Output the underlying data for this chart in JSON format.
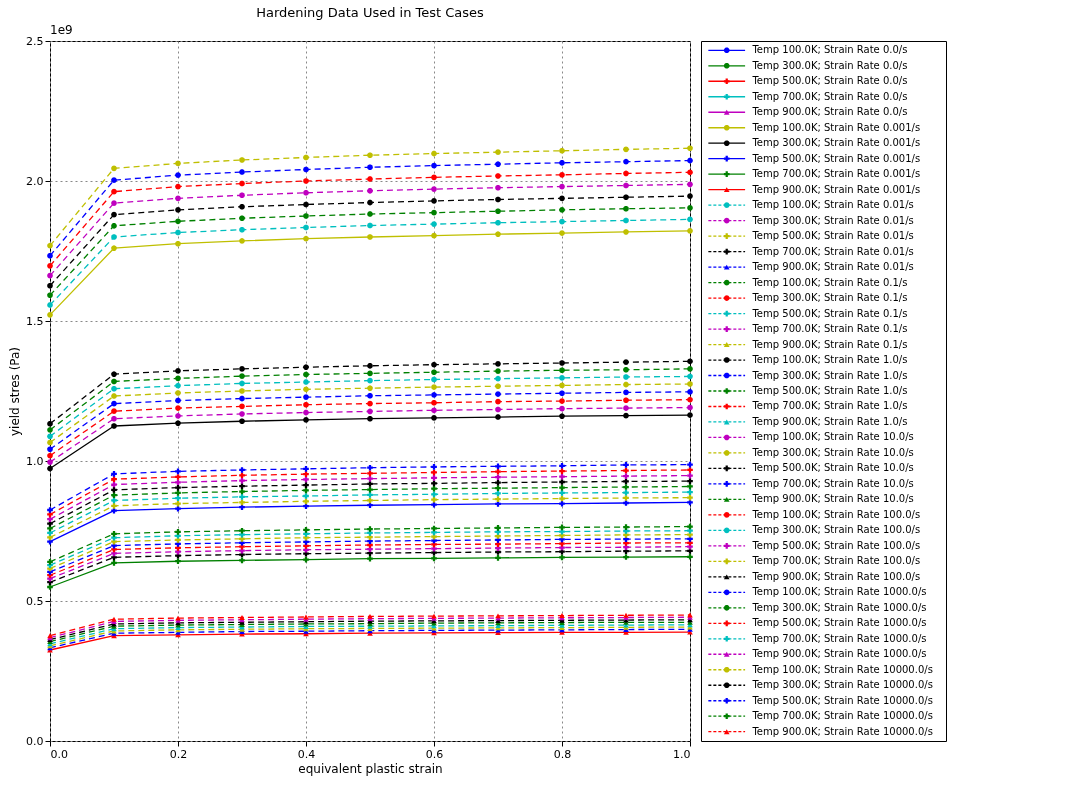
{
  "chart_data": {
    "type": "line",
    "title": "Hardening Data Used in Test Cases",
    "xlabel": "equivalent plastic strain",
    "ylabel": "yield stres (Pa)",
    "annotations": [
      "1e9"
    ],
    "x": [
      0,
      0.1,
      0.2,
      0.3,
      0.4,
      0.5,
      0.6,
      0.7,
      0.8,
      0.9,
      1.0
    ],
    "xlim": [
      0,
      1
    ],
    "xticks": [
      {
        "value": 0,
        "label": "0.0"
      },
      0.2,
      0.4,
      0.6,
      0.8,
      {
        "value": 1,
        "label": "1.0"
      }
    ],
    "ylim": [
      0,
      2.5
    ],
    "yticks": [
      {
        "value": 0,
        "label": "0.0"
      },
      0.5,
      {
        "value": 1,
        "label": "1.0"
      },
      1.5,
      {
        "value": 2,
        "label": "2.0"
      },
      2.5
    ],
    "grid": true,
    "legend": "right",
    "series": [
      {
        "name": "Temp 100.0K; Strain Rate 0.0/s",
        "color": "#0000ff",
        "marker": "circle",
        "line_style": "solid",
        "values": [
          null,
          null,
          null,
          null,
          null,
          null,
          null,
          null,
          null,
          null,
          null
        ]
      },
      {
        "name": "Temp 300.0K; Strain Rate 0.0/s",
        "color": "#008000",
        "marker": "circle",
        "line_style": "solid",
        "values": [
          null,
          null,
          null,
          null,
          null,
          null,
          null,
          null,
          null,
          null,
          null
        ]
      },
      {
        "name": "Temp 500.0K; Strain Rate 0.0/s",
        "color": "#ff0000",
        "marker": "cross",
        "line_style": "solid",
        "values": [
          null,
          null,
          null,
          null,
          null,
          null,
          null,
          null,
          null,
          null,
          null
        ]
      },
      {
        "name": "Temp 700.0K; Strain Rate 0.0/s",
        "color": "#00bfbf",
        "marker": "cross",
        "line_style": "solid",
        "values": [
          null,
          null,
          null,
          null,
          null,
          null,
          null,
          null,
          null,
          null,
          null
        ]
      },
      {
        "name": "Temp 900.0K; Strain Rate 0.0/s",
        "color": "#bf00bf",
        "marker": "triangle",
        "line_style": "solid",
        "values": [
          null,
          null,
          null,
          null,
          null,
          null,
          null,
          null,
          null,
          null,
          null
        ]
      },
      {
        "name": "Temp 100.0K; Strain Rate 0.001/s",
        "color": "#bfbf00",
        "marker": "circle",
        "line_style": "solid",
        "values": [
          1.522,
          1.76,
          1.776,
          1.786,
          1.794,
          1.8,
          1.805,
          1.81,
          1.814,
          1.818,
          1.822
        ]
      },
      {
        "name": "Temp 300.0K; Strain Rate 0.001/s",
        "color": "#000000",
        "marker": "circle",
        "line_style": "solid",
        "values": [
          0.973,
          1.125,
          1.135,
          1.142,
          1.147,
          1.151,
          1.154,
          1.157,
          1.16,
          1.162,
          1.164
        ]
      },
      {
        "name": "Temp 500.0K; Strain Rate 0.001/s",
        "color": "#0000ff",
        "marker": "cross",
        "line_style": "solid",
        "values": [
          0.712,
          0.823,
          0.83,
          0.835,
          0.839,
          0.842,
          0.844,
          0.847,
          0.848,
          0.85,
          0.852
        ]
      },
      {
        "name": "Temp 700.0K; Strain Rate 0.001/s",
        "color": "#008000",
        "marker": "cross",
        "line_style": "solid",
        "values": [
          0.55,
          0.636,
          0.642,
          0.645,
          0.648,
          0.651,
          0.652,
          0.654,
          0.656,
          0.657,
          0.658
        ]
      },
      {
        "name": "Temp 900.0K; Strain Rate 0.001/s",
        "color": "#ff0000",
        "marker": "triangle",
        "line_style": "solid",
        "values": [
          0.325,
          0.376,
          0.379,
          0.382,
          0.383,
          0.385,
          0.386,
          0.387,
          0.388,
          0.388,
          0.389
        ]
      },
      {
        "name": "Temp 100.0K; Strain Rate 0.01/s",
        "color": "#00bfbf",
        "marker": "circle",
        "line_style": "dashed",
        "values": [
          1.557,
          1.8,
          1.816,
          1.826,
          1.834,
          1.841,
          1.846,
          1.851,
          1.855,
          1.859,
          1.863
        ]
      },
      {
        "name": "Temp 300.0K; Strain Rate 0.01/s",
        "color": "#bf00bf",
        "marker": "circle",
        "line_style": "dashed",
        "values": [
          0.996,
          1.151,
          1.161,
          1.168,
          1.173,
          1.177,
          1.181,
          1.184,
          1.187,
          1.189,
          1.191
        ]
      },
      {
        "name": "Temp 500.0K; Strain Rate 0.01/s",
        "color": "#bfbf00",
        "marker": "cross",
        "line_style": "dashed",
        "values": [
          0.727,
          0.84,
          0.848,
          0.852,
          0.856,
          0.859,
          0.862,
          0.864,
          0.866,
          0.868,
          0.869
        ]
      },
      {
        "name": "Temp 700.0K; Strain Rate 0.01/s",
        "color": "#000000",
        "marker": "cross",
        "line_style": "dashed",
        "values": [
          0.567,
          0.656,
          0.662,
          0.666,
          0.669,
          0.671,
          0.673,
          0.675,
          0.676,
          0.678,
          0.679
        ]
      },
      {
        "name": "Temp 900.0K; Strain Rate 0.01/s",
        "color": "#0000ff",
        "marker": "triangle",
        "line_style": "dashed",
        "values": [
          0.333,
          0.385,
          0.388,
          0.391,
          0.392,
          0.394,
          0.395,
          0.396,
          0.397,
          0.398,
          0.399
        ]
      },
      {
        "name": "Temp 100.0K; Strain Rate 0.1/s",
        "color": "#008000",
        "marker": "circle",
        "line_style": "dashed",
        "values": [
          1.592,
          1.84,
          1.856,
          1.867,
          1.875,
          1.882,
          1.887,
          1.892,
          1.897,
          1.901,
          1.904
        ]
      },
      {
        "name": "Temp 300.0K; Strain Rate 0.1/s",
        "color": "#ff0000",
        "marker": "circle",
        "line_style": "dashed",
        "values": [
          1.019,
          1.178,
          1.189,
          1.195,
          1.201,
          1.205,
          1.208,
          1.212,
          1.214,
          1.217,
          1.219
        ]
      },
      {
        "name": "Temp 500.0K; Strain Rate 0.1/s",
        "color": "#00bfbf",
        "marker": "cross",
        "line_style": "dashed",
        "values": [
          0.743,
          0.859,
          0.867,
          0.872,
          0.875,
          0.879,
          0.881,
          0.884,
          0.886,
          0.887,
          0.889
        ]
      },
      {
        "name": "Temp 700.0K; Strain Rate 0.1/s",
        "color": "#bf00bf",
        "marker": "cross",
        "line_style": "dashed",
        "values": [
          0.58,
          0.67,
          0.676,
          0.68,
          0.683,
          0.685,
          0.687,
          0.689,
          0.691,
          0.692,
          0.694
        ]
      },
      {
        "name": "Temp 900.0K; Strain Rate 0.1/s",
        "color": "#bfbf00",
        "marker": "triangle",
        "line_style": "dashed",
        "values": [
          0.34,
          0.393,
          0.397,
          0.399,
          0.401,
          0.402,
          0.403,
          0.404,
          0.405,
          0.406,
          0.407
        ]
      },
      {
        "name": "Temp 100.0K; Strain Rate 1.0/s",
        "color": "#000000",
        "marker": "circle",
        "line_style": "dashed",
        "values": [
          1.626,
          1.88,
          1.897,
          1.908,
          1.916,
          1.923,
          1.929,
          1.934,
          1.938,
          1.942,
          1.946
        ]
      },
      {
        "name": "Temp 300.0K; Strain Rate 1.0/s",
        "color": "#0000ff",
        "marker": "circle",
        "line_style": "dashed",
        "values": [
          1.042,
          1.205,
          1.216,
          1.223,
          1.228,
          1.233,
          1.236,
          1.239,
          1.242,
          1.245,
          1.247
        ]
      },
      {
        "name": "Temp 500.0K; Strain Rate 1.0/s",
        "color": "#008000",
        "marker": "cross",
        "line_style": "dashed",
        "values": [
          0.759,
          0.878,
          0.886,
          0.891,
          0.895,
          0.898,
          0.901,
          0.903,
          0.905,
          0.907,
          0.909
        ]
      },
      {
        "name": "Temp 700.0K; Strain Rate 1.0/s",
        "color": "#ff0000",
        "marker": "cross",
        "line_style": "dashed",
        "values": [
          0.592,
          0.684,
          0.69,
          0.694,
          0.697,
          0.7,
          0.702,
          0.703,
          0.705,
          0.707,
          0.708
        ]
      },
      {
        "name": "Temp 900.0K; Strain Rate 1.0/s",
        "color": "#00bfbf",
        "marker": "triangle",
        "line_style": "dashed",
        "values": [
          0.347,
          0.401,
          0.405,
          0.407,
          0.409,
          0.41,
          0.411,
          0.412,
          0.413,
          0.414,
          0.415
        ]
      },
      {
        "name": "Temp 100.0K; Strain Rate 10.0/s",
        "color": "#bf00bf",
        "marker": "circle",
        "line_style": "dashed",
        "values": [
          1.662,
          1.921,
          1.938,
          1.949,
          1.958,
          1.965,
          1.971,
          1.976,
          1.98,
          1.984,
          1.988
        ]
      },
      {
        "name": "Temp 300.0K; Strain Rate 10.0/s",
        "color": "#bfbf00",
        "marker": "circle",
        "line_style": "dashed",
        "values": [
          1.066,
          1.232,
          1.243,
          1.25,
          1.256,
          1.26,
          1.264,
          1.267,
          1.27,
          1.273,
          1.275
        ]
      },
      {
        "name": "Temp 500.0K; Strain Rate 10.0/s",
        "color": "#000000",
        "marker": "cross",
        "line_style": "dashed",
        "values": [
          0.776,
          0.897,
          0.905,
          0.91,
          0.914,
          0.918,
          0.92,
          0.923,
          0.925,
          0.927,
          0.928
        ]
      },
      {
        "name": "Temp 700.0K; Strain Rate 10.0/s",
        "color": "#0000ff",
        "marker": "cross",
        "line_style": "dashed",
        "values": [
          0.604,
          0.698,
          0.704,
          0.708,
          0.711,
          0.714,
          0.716,
          0.718,
          0.72,
          0.721,
          0.722
        ]
      },
      {
        "name": "Temp 900.0K; Strain Rate 10.0/s",
        "color": "#008000",
        "marker": "triangle",
        "line_style": "dashed",
        "values": [
          0.355,
          0.41,
          0.414,
          0.416,
          0.418,
          0.419,
          0.421,
          0.422,
          0.423,
          0.424,
          0.424
        ]
      },
      {
        "name": "Temp 100.0K; Strain Rate 100.0/s",
        "color": "#ff0000",
        "marker": "circle",
        "line_style": "dashed",
        "values": [
          1.697,
          1.962,
          1.98,
          1.991,
          2,
          2.007,
          2.013,
          2.018,
          2.022,
          2.027,
          2.031
        ]
      },
      {
        "name": "Temp 300.0K; Strain Rate 100.0/s",
        "color": "#00bfbf",
        "marker": "circle",
        "line_style": "dashed",
        "values": [
          1.088,
          1.258,
          1.269,
          1.277,
          1.282,
          1.287,
          1.291,
          1.294,
          1.297,
          1.3,
          1.302
        ]
      },
      {
        "name": "Temp 500.0K; Strain Rate 100.0/s",
        "color": "#bf00bf",
        "marker": "cross",
        "line_style": "dashed",
        "values": [
          0.792,
          0.916,
          0.924,
          0.93,
          0.934,
          0.937,
          0.94,
          0.942,
          0.944,
          0.946,
          0.948
        ]
      },
      {
        "name": "Temp 700.0K; Strain Rate 100.0/s",
        "color": "#bfbf00",
        "marker": "cross",
        "line_style": "dashed",
        "values": [
          0.616,
          0.712,
          0.718,
          0.722,
          0.726,
          0.728,
          0.73,
          0.732,
          0.734,
          0.736,
          0.737
        ]
      },
      {
        "name": "Temp 900.0K; Strain Rate 100.0/s",
        "color": "#000000",
        "marker": "triangle",
        "line_style": "dashed",
        "values": [
          0.362,
          0.418,
          0.422,
          0.424,
          0.426,
          0.428,
          0.429,
          0.43,
          0.431,
          0.432,
          0.433
        ]
      },
      {
        "name": "Temp 100.0K; Strain Rate 1000.0/s",
        "color": "#0000ff",
        "marker": "circle",
        "line_style": "dashed",
        "values": [
          1.733,
          2.003,
          2.021,
          2.032,
          2.041,
          2.049,
          2.055,
          2.06,
          2.065,
          2.069,
          2.073
        ]
      },
      {
        "name": "Temp 300.0K; Strain Rate 1000.0/s",
        "color": "#008000",
        "marker": "circle",
        "line_style": "dashed",
        "values": [
          1.111,
          1.284,
          1.295,
          1.303,
          1.309,
          1.313,
          1.317,
          1.321,
          1.324,
          1.326,
          1.329
        ]
      },
      {
        "name": "Temp 500.0K; Strain Rate 1000.0/s",
        "color": "#ff0000",
        "marker": "cross",
        "line_style": "dashed",
        "values": [
          0.809,
          0.935,
          0.943,
          0.949,
          0.953,
          0.956,
          0.959,
          0.962,
          0.964,
          0.966,
          0.968
        ]
      },
      {
        "name": "Temp 700.0K; Strain Rate 1000.0/s",
        "color": "#00bfbf",
        "marker": "cross",
        "line_style": "dashed",
        "values": [
          0.628,
          0.726,
          0.733,
          0.737,
          0.74,
          0.743,
          0.745,
          0.747,
          0.748,
          0.75,
          0.751
        ]
      },
      {
        "name": "Temp 900.0K; Strain Rate 1000.0/s",
        "color": "#bf00bf",
        "marker": "triangle",
        "line_style": "dashed",
        "values": [
          0.369,
          0.427,
          0.431,
          0.433,
          0.435,
          0.437,
          0.438,
          0.439,
          0.44,
          0.441,
          0.442
        ]
      },
      {
        "name": "Temp 100.0K; Strain Rate 10000.0/s",
        "color": "#bfbf00",
        "marker": "circle",
        "line_style": "dashed",
        "values": [
          1.769,
          2.045,
          2.063,
          2.075,
          2.084,
          2.092,
          2.098,
          2.103,
          2.108,
          2.113,
          2.117
        ]
      },
      {
        "name": "Temp 300.0K; Strain Rate 10000.0/s",
        "color": "#000000",
        "marker": "circle",
        "line_style": "dashed",
        "values": [
          1.133,
          1.31,
          1.322,
          1.329,
          1.335,
          1.34,
          1.344,
          1.347,
          1.35,
          1.353,
          1.356
        ]
      },
      {
        "name": "Temp 500.0K; Strain Rate 10000.0/s",
        "color": "#0000ff",
        "marker": "cross",
        "line_style": "dashed",
        "values": [
          0.825,
          0.954,
          0.963,
          0.968,
          0.972,
          0.976,
          0.979,
          0.981,
          0.983,
          0.986,
          0.987
        ]
      },
      {
        "name": "Temp 700.0K; Strain Rate 10000.0/s",
        "color": "#008000",
        "marker": "cross",
        "line_style": "dashed",
        "values": [
          0.64,
          0.74,
          0.747,
          0.751,
          0.754,
          0.757,
          0.759,
          0.761,
          0.763,
          0.764,
          0.766
        ]
      },
      {
        "name": "Temp 900.0K; Strain Rate 10000.0/s",
        "color": "#ff0000",
        "marker": "triangle",
        "line_style": "dashed",
        "values": [
          0.376,
          0.435,
          0.439,
          0.441,
          0.443,
          0.445,
          0.446,
          0.447,
          0.448,
          0.449,
          0.45
        ]
      }
    ]
  }
}
